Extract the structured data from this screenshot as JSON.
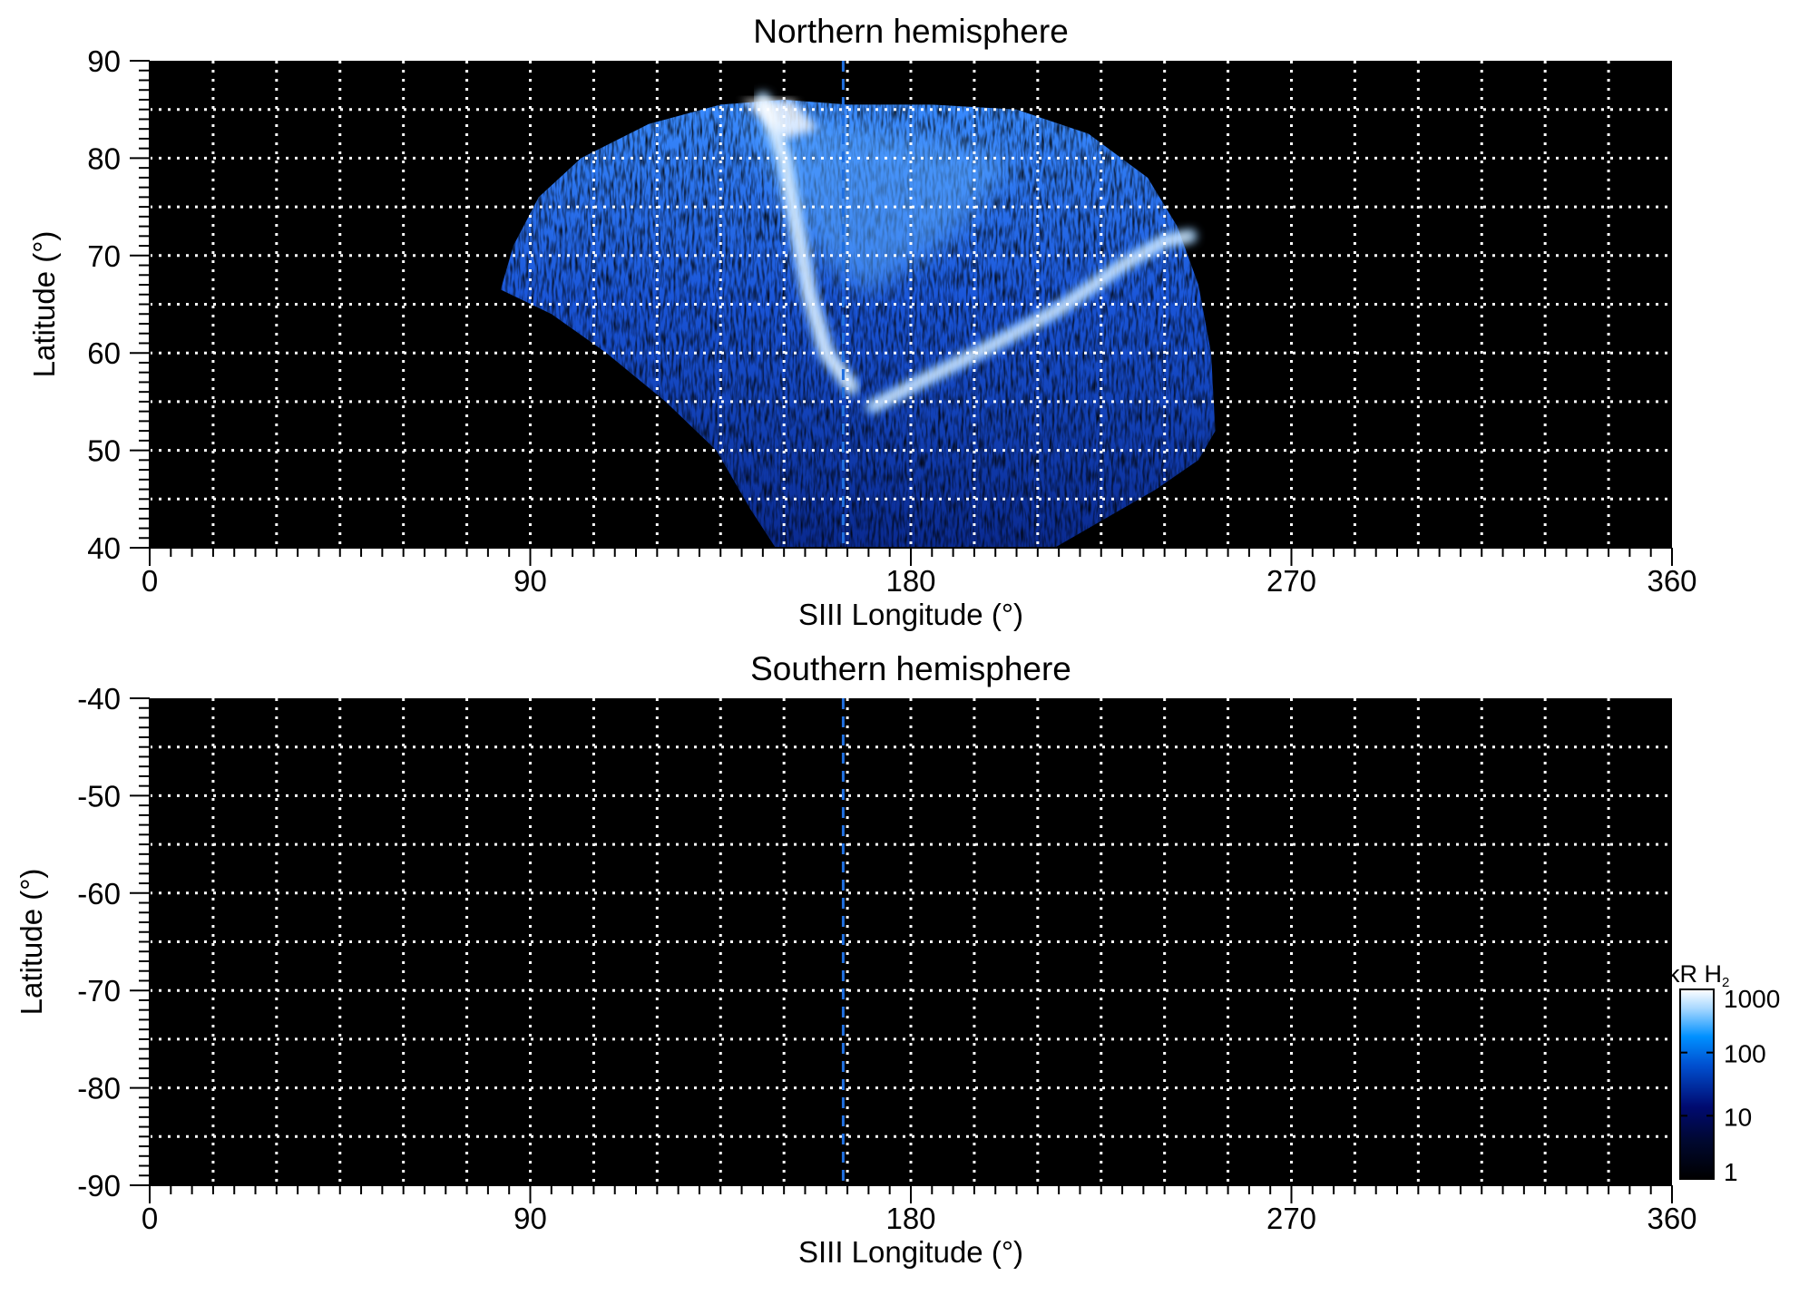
{
  "chart_data": [
    {
      "type": "heatmap",
      "title": "Northern hemisphere",
      "xlabel": "SIII Longitude (°)",
      "ylabel": "Latitude (°)",
      "xlim": [
        0,
        360
      ],
      "ylim": [
        40,
        90
      ],
      "xticks": [
        "0",
        "90",
        "180",
        "270",
        "360"
      ],
      "yticks": [
        "40",
        "50",
        "60",
        "70",
        "80",
        "90"
      ],
      "grid": true,
      "grid_x_step": 15,
      "grid_y_step": 5,
      "background": "#000000",
      "reference_longitude": 164,
      "reference_line_color": "#1f6fe0",
      "emission_extent": {
        "lon_range": [
          83,
          252
        ],
        "lat_range": [
          40,
          86
        ]
      },
      "main_oval": "bright arcs from lon ~150 lat 86 down to lon ~165 lat 56, then rising to lon ~245 lat 72"
    },
    {
      "type": "heatmap",
      "title": "Southern hemisphere",
      "xlabel": "SIII Longitude (°)",
      "ylabel": "Latitude (°)",
      "xlim": [
        0,
        360
      ],
      "ylim": [
        -90,
        -40
      ],
      "xticks": [
        "0",
        "90",
        "180",
        "270",
        "360"
      ],
      "yticks": [
        "-40",
        "-50",
        "-60",
        "-70",
        "-80",
        "-90"
      ],
      "grid": true,
      "grid_x_step": 15,
      "grid_y_step": 5,
      "background": "#000000",
      "reference_longitude": 164,
      "reference_line_color": "#1f6fe0"
    }
  ],
  "colorbar": {
    "label": "kR H",
    "label_subscript": "2",
    "scale": "log",
    "range": [
      1,
      1000
    ],
    "ticks": [
      "1000",
      "100",
      "10",
      "1"
    ],
    "colors": [
      "#000000",
      "#000a60",
      "#0040c0",
      "#0090ff",
      "#b0dcff",
      "#ffffff"
    ]
  }
}
